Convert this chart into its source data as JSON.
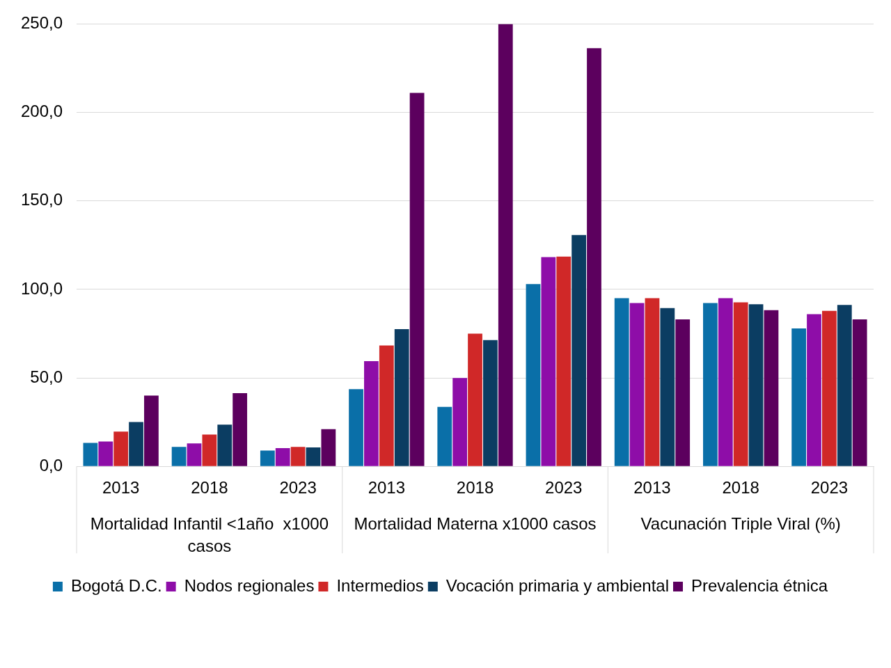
{
  "chart_data": {
    "type": "bar",
    "categories": [
      "2013",
      "2018",
      "2023",
      "2013",
      "2018",
      "2023",
      "2013",
      "2018",
      "2023"
    ],
    "annotations": [
      "Mortalidad Infantil <1año  x1000 casos",
      "Mortalidad Materna x1000 casos",
      "Vacunación Triple Viral (%)"
    ],
    "series": [
      {
        "name": "Bogotá D.C.",
        "color": "#0a6fa8",
        "values": [
          13.3,
          11,
          8.9,
          43.6,
          33.6,
          103,
          95,
          92.3,
          77.9
        ]
      },
      {
        "name": "Nodos regionales",
        "color": "#8e0da8",
        "values": [
          14,
          13,
          10.3,
          59.5,
          49.9,
          118.2,
          92.3,
          95,
          86
        ]
      },
      {
        "name": "Intermedios",
        "color": "#d02828",
        "values": [
          19.6,
          18,
          11,
          68.3,
          75,
          118.5,
          95,
          92.7,
          87.9
        ]
      },
      {
        "name": "Vocación primaria y ambiental",
        "color": "#0b3d62",
        "values": [
          25,
          23.6,
          10.7,
          77.5,
          71.3,
          130.7,
          89.4,
          91.6,
          91.2
        ]
      },
      {
        "name": "Prevalencia étnica",
        "color": "#5c005e",
        "values": [
          40,
          41.4,
          21,
          211,
          250,
          236.3,
          83,
          88.3,
          83
        ]
      }
    ],
    "ylim": [
      0,
      250
    ],
    "yticks": [
      {
        "value": 0,
        "label": "0,0"
      },
      {
        "value": 50,
        "label": "50,0"
      },
      {
        "value": 100,
        "label": "100,0"
      },
      {
        "value": 150,
        "label": "150,0"
      },
      {
        "value": 200,
        "label": "200,0"
      },
      {
        "value": 250,
        "label": "250,0"
      }
    ],
    "grid": "y",
    "legend": "bottom"
  }
}
